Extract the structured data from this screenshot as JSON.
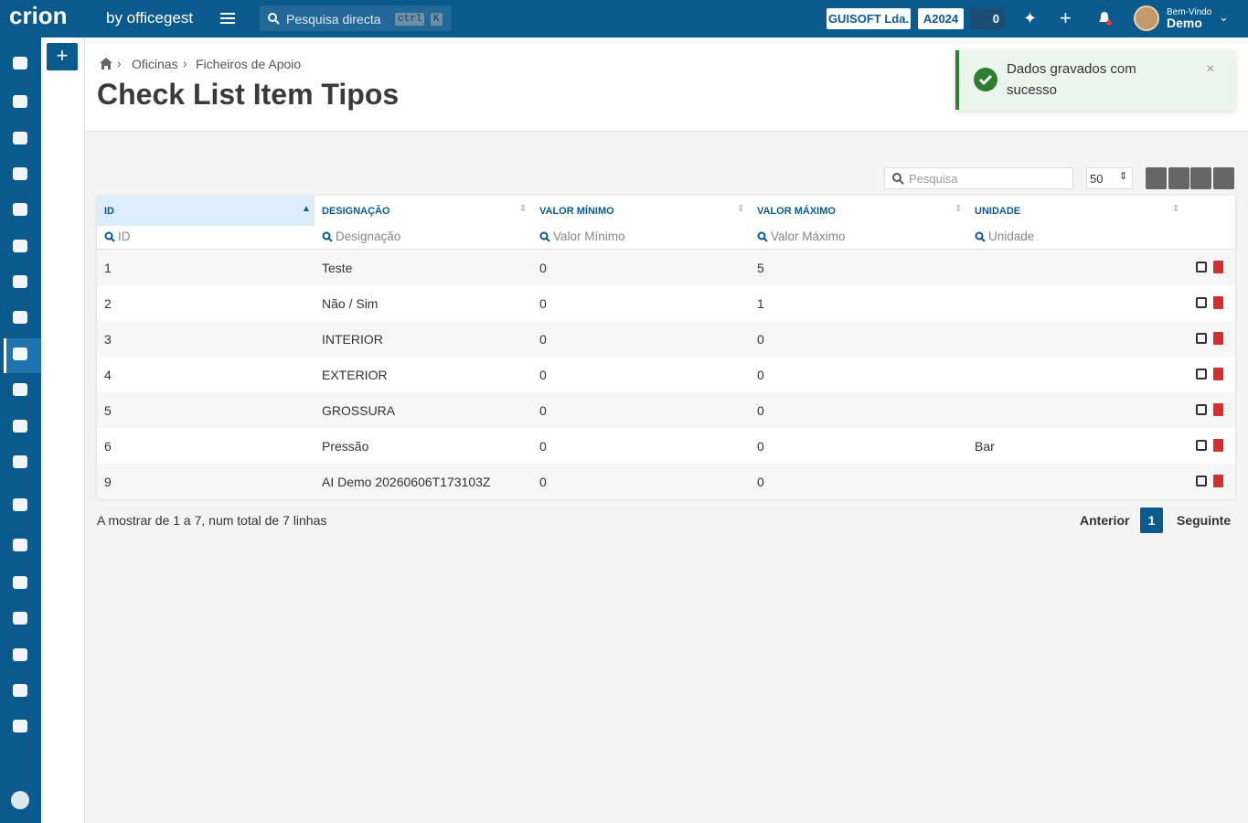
{
  "header": {
    "logo": "crion",
    "logo_sub": "by officegest",
    "search_placeholder": "Pesquisa directa",
    "kbd_1": "ctrl",
    "kbd_2": "K",
    "company": "GUISOFT Lda.",
    "year": "A2024",
    "tasks": "0",
    "greeting": "Bem-Vindo",
    "user": "Demo"
  },
  "breadcrumb": [
    "Oficinas",
    "Ficheiros de Apoio"
  ],
  "title": "Check List Item Tipos",
  "toast": "Dados gravados com sucesso",
  "toolbar": {
    "search_placeholder": "Pesquisa",
    "page_size": "50"
  },
  "table": {
    "columns": [
      "ID",
      "DESIGNAÇÃO",
      "VALOR MÍNIMO",
      "VALOR MÁXIMO",
      "UNIDADE"
    ],
    "filters": [
      "ID",
      "Designação",
      "Valor Mínimo",
      "Valor Máximo",
      "Unidade"
    ],
    "rows": [
      [
        "1",
        "Teste",
        "0",
        "5",
        ""
      ],
      [
        "2",
        "Não / Sim",
        "0",
        "1",
        ""
      ],
      [
        "3",
        "INTERIOR",
        "0",
        "0",
        ""
      ],
      [
        "4",
        "EXTERIOR",
        "0",
        "0",
        ""
      ],
      [
        "5",
        "GROSSURA",
        "0",
        "0",
        ""
      ],
      [
        "6",
        "Pressão",
        "0",
        "0",
        "Bar"
      ],
      [
        "9",
        "AI Demo 20260606T173103Z",
        "0",
        "0",
        ""
      ]
    ]
  },
  "footer": {
    "summary": "A mostrar de 1 a 7, num total de 7 linhas",
    "prev": "Anterior",
    "page": "1",
    "next": "Seguinte"
  }
}
